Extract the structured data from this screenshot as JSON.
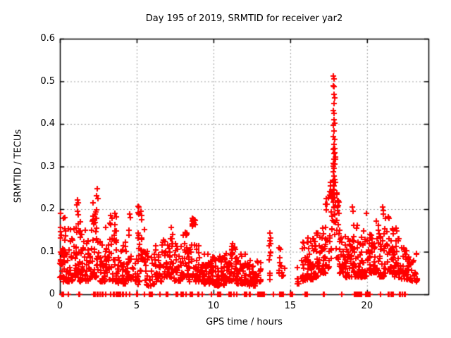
{
  "chart_data": {
    "type": "scatter",
    "title": "Day 195 of 2019, SRMTID for receiver yar2",
    "xlabel": "GPS time / hours",
    "ylabel": "SRMTID / TECUs",
    "xlim": [
      0,
      24
    ],
    "ylim": [
      0,
      0.6
    ],
    "xticks": [
      {
        "v": 0,
        "label": "0"
      },
      {
        "v": 5,
        "label": "5"
      },
      {
        "v": 10,
        "label": "10"
      },
      {
        "v": 15,
        "label": "15"
      },
      {
        "v": 20,
        "label": "20"
      }
    ],
    "yticks": [
      {
        "v": 0.0,
        "label": "0"
      },
      {
        "v": 0.1,
        "label": "0.1"
      },
      {
        "v": 0.2,
        "label": "0.2"
      },
      {
        "v": 0.3,
        "label": "0.3"
      },
      {
        "v": 0.4,
        "label": "0.4"
      },
      {
        "v": 0.5,
        "label": "0.5"
      },
      {
        "v": 0.6,
        "label": "0.6"
      }
    ],
    "grid": true,
    "legend": null,
    "marker": {
      "glyph": "plus",
      "color": "#ff0000",
      "size": 8,
      "stroke": 2
    },
    "grid_color": "#9e9e9e",
    "border_color": "#000000",
    "background": "#ffffff",
    "seed": 42,
    "point_clusters": [
      [
        0.0,
        0.2,
        20,
        0.04,
        0.19,
        2.0
      ],
      [
        0.2,
        0.45,
        22,
        0.03,
        0.18,
        2.2
      ],
      [
        0.45,
        0.85,
        28,
        0.03,
        0.155,
        2.2
      ],
      [
        0.85,
        1.3,
        35,
        0.04,
        0.19,
        2.0
      ],
      [
        1.3,
        1.65,
        25,
        0.03,
        0.19,
        2.2
      ],
      [
        1.65,
        2.0,
        25,
        0.03,
        0.13,
        2.0
      ],
      [
        2.0,
        2.55,
        45,
        0.04,
        0.23,
        2.2
      ],
      [
        2.55,
        3.0,
        30,
        0.03,
        0.125,
        2.0
      ],
      [
        3.0,
        3.4,
        28,
        0.035,
        0.185,
        2.2
      ],
      [
        3.4,
        3.8,
        28,
        0.03,
        0.19,
        2.2
      ],
      [
        3.8,
        4.3,
        30,
        0.025,
        0.135,
        2.0
      ],
      [
        4.3,
        4.65,
        20,
        0.03,
        0.19,
        2.4
      ],
      [
        4.65,
        5.05,
        12,
        0.03,
        0.1,
        1.8
      ],
      [
        5.05,
        5.2,
        14,
        0.02,
        0.21,
        1.2
      ],
      [
        5.2,
        5.55,
        16,
        0.05,
        0.175,
        1.6
      ],
      [
        5.55,
        6.2,
        30,
        0.02,
        0.105,
        2.0
      ],
      [
        6.2,
        6.7,
        25,
        0.03,
        0.125,
        2.0
      ],
      [
        6.7,
        7.05,
        22,
        0.04,
        0.13,
        1.8
      ],
      [
        7.05,
        7.4,
        25,
        0.04,
        0.16,
        1.8
      ],
      [
        7.4,
        7.9,
        30,
        0.03,
        0.12,
        2.0
      ],
      [
        7.9,
        8.35,
        28,
        0.04,
        0.145,
        1.8
      ],
      [
        8.35,
        8.6,
        15,
        0.03,
        0.12,
        1.8
      ],
      [
        8.6,
        8.8,
        14,
        0.16,
        0.178,
        1.0
      ],
      [
        8.6,
        8.9,
        12,
        0.04,
        0.12,
        1.8
      ],
      [
        8.8,
        9.35,
        30,
        0.03,
        0.13,
        2.0
      ],
      [
        9.35,
        10.0,
        45,
        0.025,
        0.095,
        1.8
      ],
      [
        10.0,
        10.7,
        50,
        0.02,
        0.09,
        1.8
      ],
      [
        10.7,
        11.2,
        40,
        0.03,
        0.1,
        1.8
      ],
      [
        11.2,
        11.45,
        18,
        0.03,
        0.12,
        1.6
      ],
      [
        11.45,
        12.1,
        45,
        0.025,
        0.095,
        1.8
      ],
      [
        12.1,
        12.8,
        40,
        0.02,
        0.085,
        1.8
      ],
      [
        12.8,
        13.1,
        15,
        0.03,
        0.08,
        1.8
      ],
      [
        13.6,
        13.75,
        10,
        0.02,
        0.145,
        1.2
      ],
      [
        14.25,
        14.4,
        8,
        0.04,
        0.12,
        1.4
      ],
      [
        14.4,
        14.65,
        6,
        0.03,
        0.07,
        1.5
      ],
      [
        15.45,
        15.6,
        6,
        0.025,
        0.065,
        1.5
      ],
      [
        15.75,
        16.1,
        25,
        0.03,
        0.14,
        1.8
      ],
      [
        16.1,
        16.5,
        30,
        0.035,
        0.135,
        1.8
      ],
      [
        16.5,
        16.9,
        35,
        0.04,
        0.145,
        1.8
      ],
      [
        16.9,
        17.3,
        30,
        0.05,
        0.16,
        1.8
      ],
      [
        17.3,
        17.55,
        18,
        0.06,
        0.23,
        1.5
      ],
      [
        17.55,
        17.75,
        14,
        0.08,
        0.28,
        1.3
      ],
      [
        17.75,
        17.95,
        20,
        0.14,
        0.35,
        1.2
      ],
      [
        17.95,
        18.2,
        16,
        0.08,
        0.24,
        1.5
      ],
      [
        18.2,
        18.55,
        25,
        0.05,
        0.16,
        1.8
      ],
      [
        18.55,
        19.0,
        30,
        0.04,
        0.14,
        1.8
      ],
      [
        19.0,
        19.5,
        35,
        0.04,
        0.165,
        1.8
      ],
      [
        19.5,
        20.0,
        35,
        0.04,
        0.15,
        1.8
      ],
      [
        20.0,
        20.5,
        35,
        0.05,
        0.155,
        1.8
      ],
      [
        20.5,
        20.8,
        20,
        0.05,
        0.175,
        1.7
      ],
      [
        20.8,
        21.1,
        20,
        0.04,
        0.14,
        1.8
      ],
      [
        21.1,
        21.45,
        22,
        0.05,
        0.185,
        1.7
      ],
      [
        21.45,
        21.8,
        25,
        0.05,
        0.155,
        1.8
      ],
      [
        21.8,
        22.15,
        28,
        0.04,
        0.16,
        1.8
      ],
      [
        22.15,
        22.85,
        40,
        0.035,
        0.115,
        1.8
      ],
      [
        22.85,
        23.3,
        20,
        0.03,
        0.1,
        1.8
      ]
    ],
    "explicit_points": [
      [
        0.05,
        0.19
      ],
      [
        0.3,
        0.18
      ],
      [
        1.1,
        0.21
      ],
      [
        1.15,
        0.222
      ],
      [
        1.18,
        0.215
      ],
      [
        1.13,
        0.195
      ],
      [
        2.43,
        0.248
      ],
      [
        2.4,
        0.231
      ],
      [
        2.46,
        0.224
      ],
      [
        3.32,
        0.185
      ],
      [
        3.6,
        0.19
      ],
      [
        4.55,
        0.188
      ],
      [
        4.58,
        0.18
      ],
      [
        5.1,
        0.207
      ],
      [
        5.28,
        0.195
      ],
      [
        5.32,
        0.185
      ],
      [
        8.65,
        0.178
      ],
      [
        8.68,
        0.172
      ],
      [
        8.7,
        0.175
      ],
      [
        8.72,
        0.168
      ],
      [
        8.66,
        0.165
      ],
      [
        13.68,
        0.143
      ],
      [
        13.7,
        0.132
      ],
      [
        17.6,
        0.262
      ],
      [
        17.63,
        0.255
      ],
      [
        17.57,
        0.242
      ],
      [
        17.65,
        0.238
      ],
      [
        17.82,
        0.512
      ],
      [
        17.85,
        0.505
      ],
      [
        17.8,
        0.49
      ],
      [
        17.86,
        0.487
      ],
      [
        17.83,
        0.47
      ],
      [
        17.88,
        0.461
      ],
      [
        17.84,
        0.448
      ],
      [
        17.8,
        0.432
      ],
      [
        17.87,
        0.424
      ],
      [
        17.83,
        0.41
      ],
      [
        17.9,
        0.401
      ],
      [
        17.8,
        0.396
      ],
      [
        17.85,
        0.384
      ],
      [
        17.82,
        0.371
      ],
      [
        17.88,
        0.363
      ],
      [
        17.84,
        0.352
      ],
      [
        17.8,
        0.34
      ],
      [
        17.86,
        0.331
      ],
      [
        17.83,
        0.317
      ],
      [
        17.89,
        0.306
      ],
      [
        17.85,
        0.296
      ],
      [
        17.81,
        0.287
      ],
      [
        17.87,
        0.278
      ],
      [
        17.82,
        0.268
      ],
      [
        17.86,
        0.255
      ],
      [
        17.8,
        0.246
      ],
      [
        17.84,
        0.236
      ],
      [
        17.88,
        0.226
      ],
      [
        17.82,
        0.216
      ],
      [
        17.86,
        0.205
      ],
      [
        18.05,
        0.235
      ],
      [
        18.1,
        0.22
      ],
      [
        18.08,
        0.205
      ],
      [
        18.15,
        0.19
      ],
      [
        19.05,
        0.205
      ],
      [
        19.1,
        0.195
      ],
      [
        19.95,
        0.19
      ],
      [
        21.02,
        0.205
      ],
      [
        21.05,
        0.196
      ],
      [
        21.08,
        0.188
      ]
    ],
    "baseline_marks": [
      0.15,
      0.25,
      0.55,
      1.25,
      1.3,
      2.2,
      2.25,
      2.3,
      2.45,
      2.5,
      2.6,
      2.75,
      2.8,
      3.0,
      3.3,
      3.5,
      3.55,
      3.65,
      3.7,
      3.8,
      3.9,
      3.95,
      4.1,
      4.15,
      4.3,
      4.55,
      5.0,
      5.05,
      5.5,
      5.85,
      5.9,
      6.0,
      6.5,
      6.95,
      7.0,
      7.55,
      7.6,
      7.65,
      7.9,
      8.0,
      8.05,
      8.2,
      8.5,
      8.55,
      8.65,
      9.0,
      9.05,
      9.25,
      9.85,
      10.3,
      10.35,
      10.45,
      11.0,
      11.05,
      11.15,
      11.35,
      11.5,
      12.0,
      12.05,
      12.15,
      12.35,
      12.4,
      12.9,
      12.95,
      13.0,
      13.1,
      13.15,
      13.25,
      13.3,
      13.9,
      14.3,
      14.35,
      14.45,
      14.55,
      15.0,
      15.05,
      15.15,
      15.95,
      16.0,
      16.1,
      17.15,
      17.2,
      18.35,
      19.2,
      19.25,
      19.3,
      19.35,
      19.45,
      19.5,
      19.55,
      19.65,
      19.9,
      20.0,
      20.05,
      20.15,
      20.2,
      20.9,
      21.4,
      21.45,
      21.55,
      21.6,
      21.7,
      22.1,
      22.15,
      22.3,
      22.45,
      22.5
    ]
  }
}
